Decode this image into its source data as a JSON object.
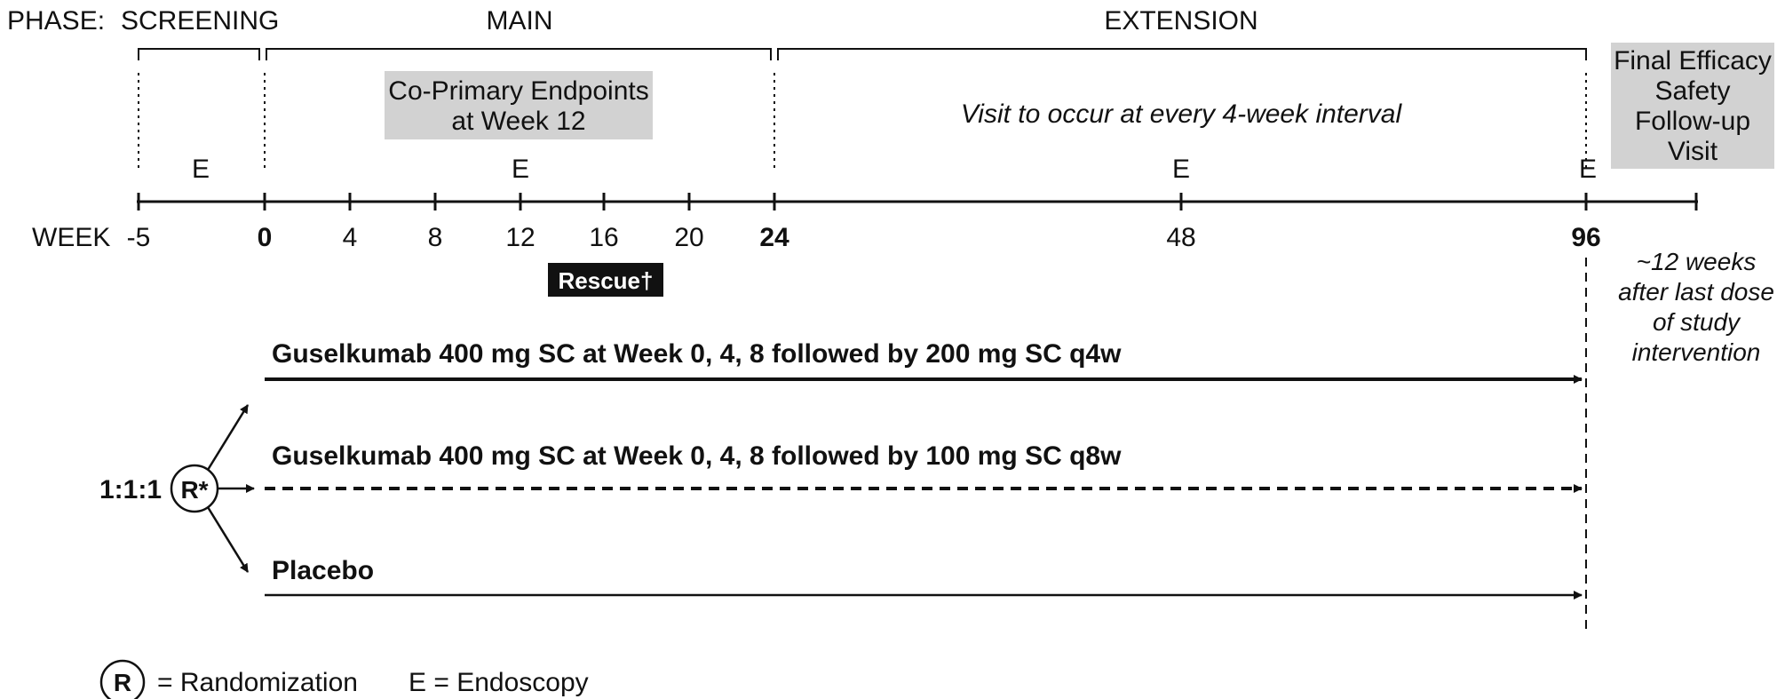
{
  "phase_header": {
    "label": "PHASE:",
    "screening": "SCREENING",
    "main": "MAIN",
    "extension": "EXTENSION"
  },
  "boxes": {
    "co_primary_line1": "Co-Primary Endpoints",
    "co_primary_line2": "at Week 12",
    "final_visit_lines": [
      "Final Efficacy",
      "Safety",
      "Follow-up",
      "Visit"
    ]
  },
  "extension_note": "Visit to occur at every 4-week interval",
  "endoscopy_marker": "E",
  "axis": {
    "label": "WEEK",
    "ticks": [
      "-5",
      "0",
      "4",
      "8",
      "12",
      "16",
      "20",
      "24",
      "48",
      "96"
    ]
  },
  "rescue_label": "Rescue†",
  "followup_note": [
    "~12 weeks",
    "after last dose",
    "of study",
    "intervention"
  ],
  "randomization": {
    "ratio": "1:1:1",
    "symbol": "R*"
  },
  "arms": [
    {
      "label": "Guselkumab 400 mg SC at Week 0, 4, 8 followed by 200 mg SC q4w",
      "line_style": "solid-thick"
    },
    {
      "label": "Guselkumab 400 mg SC at Week 0, 4, 8 followed by 100 mg SC q8w",
      "line_style": "dashed"
    },
    {
      "label": "Placebo",
      "line_style": "solid"
    }
  ],
  "legend": {
    "r_symbol": "R",
    "r_text": "= Randomization",
    "e_text": "E = Endoscopy"
  },
  "colors": {
    "ink": "#111111",
    "gray_box": "#d2d2d2",
    "rescue_bg": "#111111",
    "rescue_text": "#ffffff"
  }
}
